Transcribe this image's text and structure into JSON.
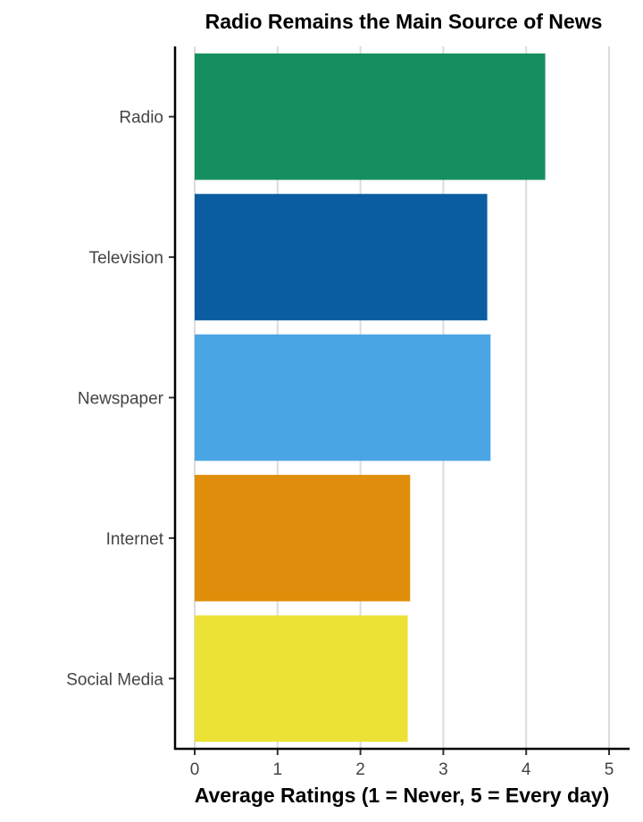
{
  "chart_data": {
    "type": "bar",
    "orientation": "horizontal",
    "title": "Radio Remains the Main Source of News",
    "xlabel": "Average Ratings (1 = Never, 5 = Every day)",
    "ylabel": "",
    "categories": [
      "Radio",
      "Television",
      "Newspaper",
      "Internet",
      "Social Media"
    ],
    "values": [
      4.23,
      3.53,
      3.57,
      2.6,
      2.57
    ],
    "colors": [
      "#168f60",
      "#0b5da2",
      "#4aa5e4",
      "#e08e0b",
      "#ece235"
    ],
    "xlim": [
      0,
      5
    ],
    "x_ticks": [
      0,
      1,
      2,
      3,
      4,
      5
    ],
    "grid": "vertical",
    "legend": "none"
  }
}
